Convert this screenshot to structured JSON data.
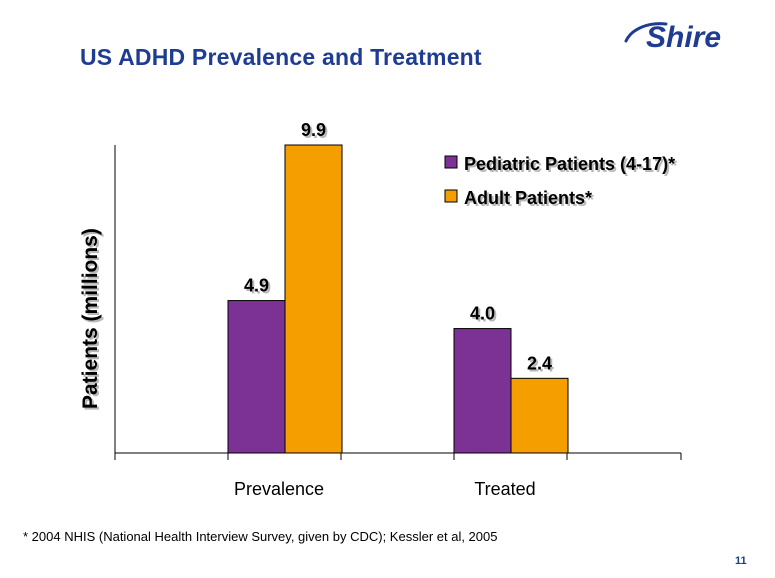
{
  "slide": {
    "title": "US ADHD Prevalence and Treatment",
    "logo_text": "Shire",
    "footnote": "* 2004 NHIS (National Health Interview Survey, given by CDC); Kessler et al, 2005",
    "page_number": "11"
  },
  "colors": {
    "title": "#1f3c93",
    "pediatric": "#7b3294",
    "adult": "#f59e00"
  },
  "chart_data": {
    "type": "bar",
    "categories": [
      "Prevalence",
      "Treated"
    ],
    "series": [
      {
        "name": "Pediatric Patients (4-17)*",
        "values": [
          4.9,
          4.0
        ],
        "color": "#7b3294"
      },
      {
        "name": "Adult Patients*",
        "values": [
          9.9,
          2.4
        ],
        "color": "#f59e00"
      }
    ],
    "xlabel": "",
    "ylabel": "Patients (millions)",
    "ylim": [
      0,
      9.9
    ],
    "grid": false,
    "legend_position": "top-right",
    "data_labels": true,
    "label_shadow": true
  }
}
